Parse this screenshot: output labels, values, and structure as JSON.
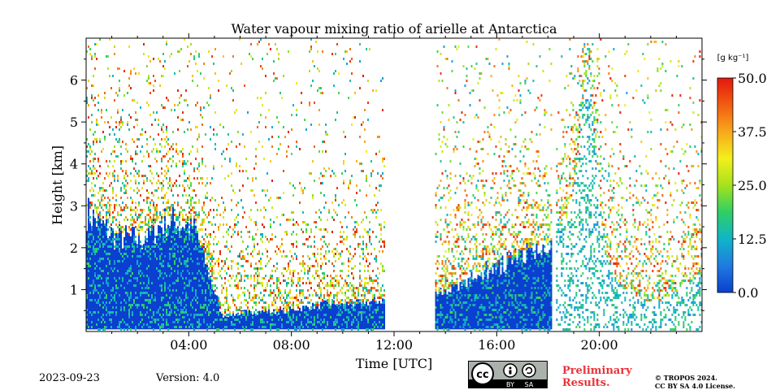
{
  "chart_data": {
    "type": "heatmap",
    "title": "Water vapour mixing ratio of arielle at Antarctica",
    "xlabel": "Time [UTC]",
    "ylabel": "Height [km]",
    "xlim": [
      0,
      24
    ],
    "ylim": [
      0,
      7
    ],
    "xticks": [
      {
        "value": 4,
        "label": "04:00"
      },
      {
        "value": 8,
        "label": "08:00"
      },
      {
        "value": 12,
        "label": "12:00"
      },
      {
        "value": 16,
        "label": "16:00"
      },
      {
        "value": 20,
        "label": "20:00"
      }
    ],
    "yticks": [
      {
        "value": 1,
        "label": "1"
      },
      {
        "value": 2,
        "label": "2"
      },
      {
        "value": 3,
        "label": "3"
      },
      {
        "value": 4,
        "label": "4"
      },
      {
        "value": 5,
        "label": "5"
      },
      {
        "value": 6,
        "label": "6"
      }
    ],
    "colorbar": {
      "unit_label": "[g kg⁻¹]",
      "min": 0.0,
      "max": 50.0,
      "ticks": [
        "0.0",
        "12.5",
        "25.0",
        "37.5",
        "50.0"
      ],
      "colormap": [
        "#0a3fcf",
        "#1f7be0",
        "#10b5c9",
        "#2fcf64",
        "#a6e21c",
        "#f4ef1c",
        "#f7a81c",
        "#f25c12",
        "#e3190e"
      ]
    },
    "data_segments": [
      {
        "start_hour": 0.0,
        "end_hour": 11.6,
        "dense_top_km": [
          3.0,
          2.4,
          2.3,
          2.8,
          2.6,
          0.4,
          0.5,
          0.5,
          0.6,
          0.7,
          0.7,
          0.8
        ],
        "sparse_top_km": 7.0
      },
      {
        "start_hour": 13.6,
        "end_hour": 18.1,
        "dense_top_km": [
          0.9,
          1.2,
          1.5,
          1.7,
          2.0,
          2.2
        ],
        "sparse_top_km": 7.0
      },
      {
        "start_hour": 18.25,
        "end_hour": 24.0,
        "dense_top_km": [
          2.4,
          2.9,
          6.5,
          2.0,
          1.1,
          0.8,
          0.75,
          0.8,
          1.2,
          1.4
        ],
        "sparse_top_km": 7.0
      }
    ],
    "data_gaps_hours": [
      [
        11.6,
        13.6
      ],
      [
        18.1,
        18.25
      ]
    ]
  },
  "footer": {
    "date": "2023-09-23",
    "version": "Version: 4.0",
    "license_badge": {
      "cc": "cc",
      "by": "BY",
      "sa": "SA"
    },
    "preliminary_line1": "Preliminary",
    "preliminary_line2": "Results.",
    "copyright_line1": "© TROPOS 2024.",
    "copyright_line2": "CC BY SA 4.0 License."
  }
}
